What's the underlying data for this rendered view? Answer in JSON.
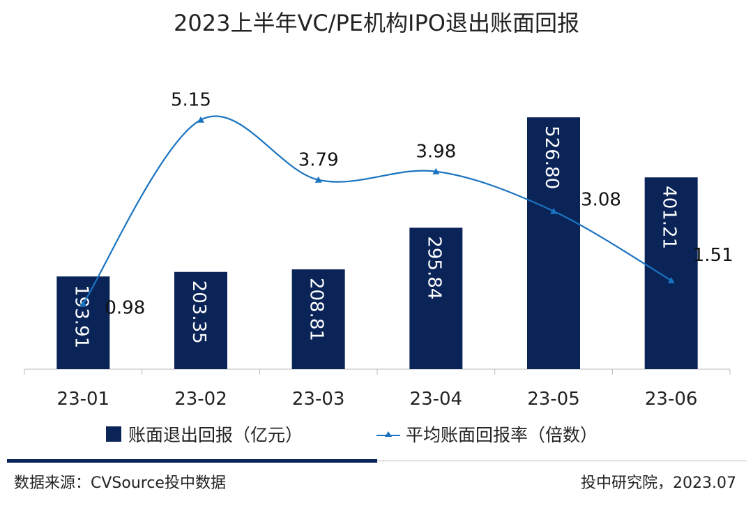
{
  "chart_data": {
    "type": "bar+line",
    "title": "2023上半年VC/PE机构IPO退出账面回报",
    "categories": [
      "23-01",
      "23-02",
      "23-03",
      "23-04",
      "23-05",
      "23-06"
    ],
    "series": [
      {
        "name": "账面退出回报（亿元）",
        "type": "bar",
        "axis": "left",
        "color": "#0a2458",
        "values": [
          193.91,
          203.35,
          208.81,
          295.84,
          526.8,
          401.21
        ],
        "labels": [
          "193.91",
          "203.35",
          "208.81",
          "295.84",
          "526.80",
          "401.21"
        ]
      },
      {
        "name": "平均账面回报率（倍数）",
        "type": "line",
        "axis": "right",
        "color": "#1a73c0",
        "marker": "triangle",
        "smooth": true,
        "values": [
          0.98,
          5.15,
          3.79,
          3.98,
          3.08,
          1.51
        ],
        "labels": [
          "0.98",
          "5.15",
          "3.79",
          "3.98",
          "3.08",
          "1.51"
        ]
      }
    ],
    "left_ylim": [
      0,
      600
    ],
    "right_ylim": [
      -0.5,
      6
    ],
    "grid": false,
    "axes_visible": false,
    "legend_position": "bottom"
  },
  "footer": {
    "source": "数据来源：CVSource投中数据",
    "credit": "投中研究院，2023.07",
    "accent": "#0a2458"
  }
}
